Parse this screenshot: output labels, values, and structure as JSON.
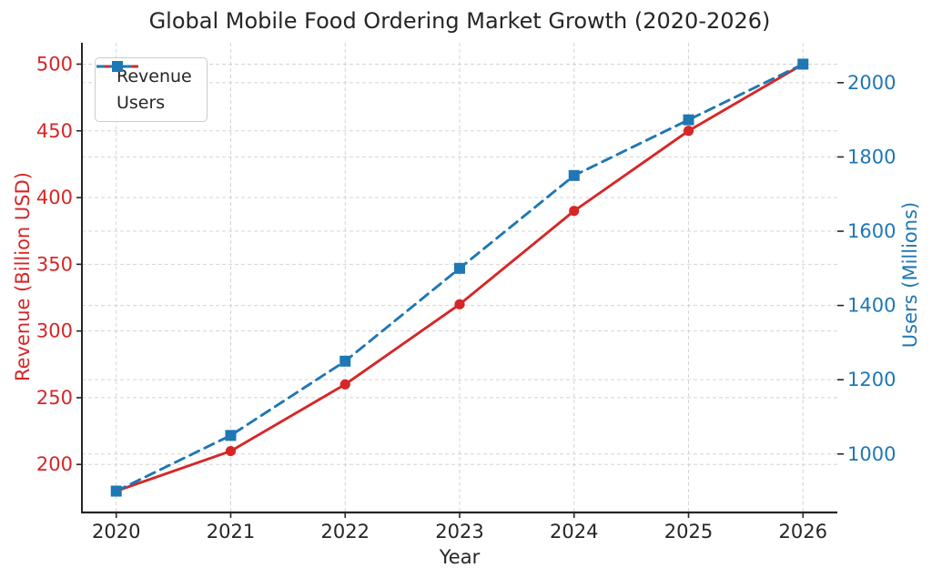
{
  "chart_data": {
    "type": "line",
    "title": "Global Mobile Food Ordering Market Growth (2020-2026)",
    "x": [
      2020,
      2021,
      2022,
      2023,
      2024,
      2025,
      2026
    ],
    "series": [
      {
        "name": "Revenue",
        "axis": "left",
        "color": "#d62728",
        "linestyle": "solid",
        "marker": "circle",
        "values": [
          180,
          210,
          260,
          320,
          390,
          450,
          500
        ]
      },
      {
        "name": "Users",
        "axis": "right",
        "color": "#1f77b4",
        "linestyle": "dashed",
        "marker": "square",
        "values": [
          900,
          1050,
          1250,
          1500,
          1750,
          1900,
          2050
        ]
      }
    ],
    "axes": {
      "x": {
        "label": "Year",
        "ticks": [
          2020,
          2021,
          2022,
          2023,
          2024,
          2025,
          2026
        ],
        "lim": [
          2019.7,
          2026.3
        ]
      },
      "left": {
        "label": "Revenue (Billion USD)",
        "color": "#d62728",
        "ticks": [
          200,
          250,
          300,
          350,
          400,
          450,
          500
        ],
        "lim": [
          164,
          516
        ]
      },
      "right": {
        "label": "Users (Millions)",
        "color": "#1f77b4",
        "ticks": [
          1000,
          1200,
          1400,
          1600,
          1800,
          2000
        ],
        "lim": [
          842.5,
          2107.5
        ]
      }
    },
    "legend": {
      "position": "upper left",
      "labels": [
        "Revenue",
        "Users"
      ]
    },
    "grid": true,
    "grid_color": "#cdcdcd",
    "text_color": "#262626"
  }
}
